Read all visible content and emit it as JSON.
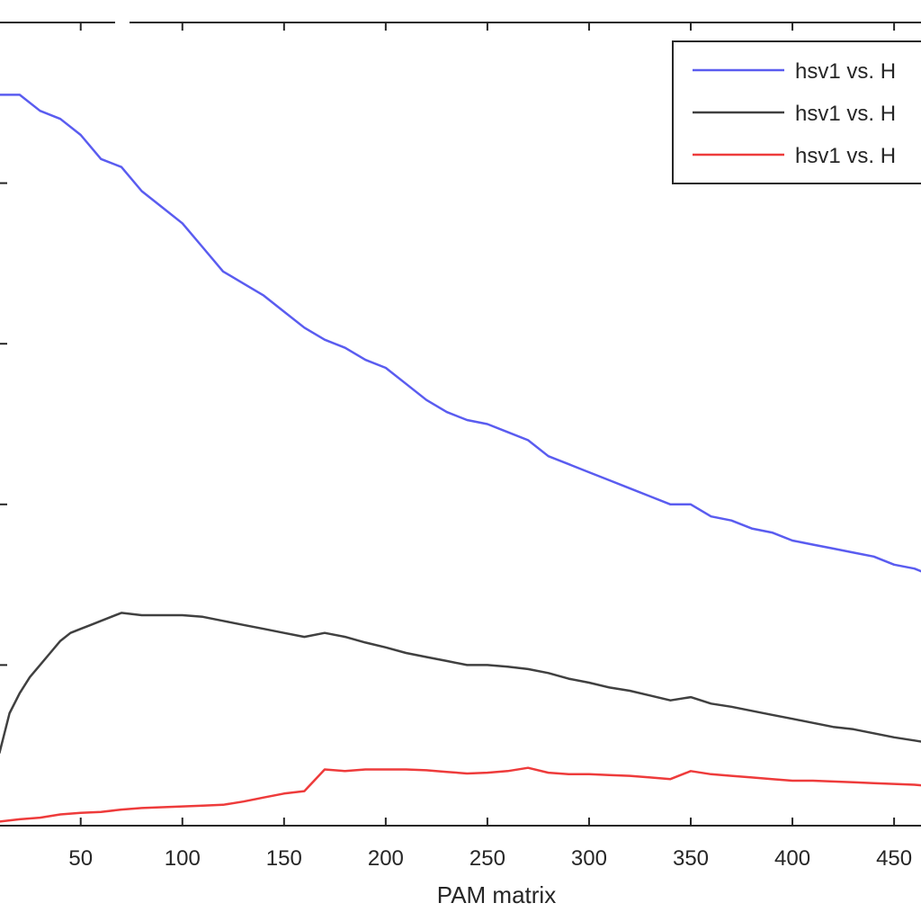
{
  "chart_data": {
    "type": "line",
    "title": "",
    "xlabel": "PAM matrix",
    "ylabel": "",
    "xlim": [
      5,
      465
    ],
    "ylim": [
      0,
      1
    ],
    "x_ticks": [
      50,
      100,
      150,
      200,
      250,
      300,
      350,
      400,
      450
    ],
    "x_tick_labels": [
      "50",
      "100",
      "150",
      "200",
      "250",
      "300",
      "350",
      "400",
      "450"
    ],
    "grid": false,
    "legend": {
      "placement": "top-right",
      "entries": [
        "hsv1 vs. H",
        "hsv1 vs. H",
        "hsv1 vs. H"
      ]
    },
    "series": [
      {
        "name": "hsv1 vs. H",
        "color": "#5a5cf0",
        "points": [
          [
            10,
            0.91
          ],
          [
            20,
            0.91
          ],
          [
            30,
            0.89
          ],
          [
            40,
            0.88
          ],
          [
            50,
            0.86
          ],
          [
            60,
            0.83
          ],
          [
            70,
            0.82
          ],
          [
            80,
            0.79
          ],
          [
            90,
            0.77
          ],
          [
            100,
            0.75
          ],
          [
            110,
            0.72
          ],
          [
            120,
            0.69
          ],
          [
            130,
            0.675
          ],
          [
            140,
            0.66
          ],
          [
            150,
            0.64
          ],
          [
            160,
            0.62
          ],
          [
            170,
            0.605
          ],
          [
            180,
            0.595
          ],
          [
            190,
            0.58
          ],
          [
            200,
            0.57
          ],
          [
            210,
            0.55
          ],
          [
            220,
            0.53
          ],
          [
            230,
            0.515
          ],
          [
            240,
            0.505
          ],
          [
            250,
            0.5
          ],
          [
            260,
            0.49
          ],
          [
            270,
            0.48
          ],
          [
            280,
            0.46
          ],
          [
            290,
            0.45
          ],
          [
            300,
            0.44
          ],
          [
            310,
            0.43
          ],
          [
            320,
            0.42
          ],
          [
            330,
            0.41
          ],
          [
            340,
            0.4
          ],
          [
            350,
            0.4
          ],
          [
            360,
            0.385
          ],
          [
            370,
            0.38
          ],
          [
            380,
            0.37
          ],
          [
            390,
            0.365
          ],
          [
            400,
            0.355
          ],
          [
            410,
            0.35
          ],
          [
            420,
            0.345
          ],
          [
            430,
            0.34
          ],
          [
            440,
            0.335
          ],
          [
            450,
            0.325
          ],
          [
            460,
            0.32
          ],
          [
            465,
            0.315
          ]
        ]
      },
      {
        "name": "hsv1 vs. H",
        "color": "#404040",
        "points": [
          [
            10,
            0.09
          ],
          [
            15,
            0.14
          ],
          [
            20,
            0.165
          ],
          [
            25,
            0.185
          ],
          [
            30,
            0.2
          ],
          [
            35,
            0.215
          ],
          [
            40,
            0.23
          ],
          [
            45,
            0.24
          ],
          [
            50,
            0.245
          ],
          [
            55,
            0.25
          ],
          [
            60,
            0.255
          ],
          [
            65,
            0.26
          ],
          [
            70,
            0.265
          ],
          [
            80,
            0.262
          ],
          [
            90,
            0.262
          ],
          [
            100,
            0.262
          ],
          [
            110,
            0.26
          ],
          [
            120,
            0.255
          ],
          [
            130,
            0.25
          ],
          [
            140,
            0.245
          ],
          [
            150,
            0.24
          ],
          [
            160,
            0.235
          ],
          [
            170,
            0.24
          ],
          [
            180,
            0.235
          ],
          [
            190,
            0.228
          ],
          [
            200,
            0.222
          ],
          [
            210,
            0.215
          ],
          [
            220,
            0.21
          ],
          [
            230,
            0.205
          ],
          [
            240,
            0.2
          ],
          [
            250,
            0.2
          ],
          [
            260,
            0.198
          ],
          [
            270,
            0.195
          ],
          [
            280,
            0.19
          ],
          [
            290,
            0.183
          ],
          [
            300,
            0.178
          ],
          [
            310,
            0.172
          ],
          [
            320,
            0.168
          ],
          [
            330,
            0.162
          ],
          [
            340,
            0.156
          ],
          [
            350,
            0.16
          ],
          [
            360,
            0.152
          ],
          [
            370,
            0.148
          ],
          [
            380,
            0.143
          ],
          [
            390,
            0.138
          ],
          [
            400,
            0.133
          ],
          [
            410,
            0.128
          ],
          [
            420,
            0.123
          ],
          [
            430,
            0.12
          ],
          [
            440,
            0.115
          ],
          [
            450,
            0.11
          ],
          [
            460,
            0.106
          ],
          [
            465,
            0.104
          ]
        ]
      },
      {
        "name": "hsv1 vs. H",
        "color": "#ee3b3b",
        "points": [
          [
            10,
            0.005
          ],
          [
            20,
            0.008
          ],
          [
            30,
            0.01
          ],
          [
            40,
            0.014
          ],
          [
            50,
            0.016
          ],
          [
            60,
            0.017
          ],
          [
            70,
            0.02
          ],
          [
            80,
            0.022
          ],
          [
            90,
            0.023
          ],
          [
            100,
            0.024
          ],
          [
            110,
            0.025
          ],
          [
            120,
            0.026
          ],
          [
            130,
            0.03
          ],
          [
            140,
            0.035
          ],
          [
            150,
            0.04
          ],
          [
            160,
            0.043
          ],
          [
            170,
            0.07
          ],
          [
            180,
            0.068
          ],
          [
            190,
            0.07
          ],
          [
            200,
            0.07
          ],
          [
            210,
            0.07
          ],
          [
            220,
            0.069
          ],
          [
            230,
            0.067
          ],
          [
            240,
            0.065
          ],
          [
            250,
            0.066
          ],
          [
            260,
            0.068
          ],
          [
            270,
            0.072
          ],
          [
            280,
            0.066
          ],
          [
            290,
            0.064
          ],
          [
            300,
            0.064
          ],
          [
            310,
            0.063
          ],
          [
            320,
            0.062
          ],
          [
            330,
            0.06
          ],
          [
            340,
            0.058
          ],
          [
            350,
            0.068
          ],
          [
            360,
            0.064
          ],
          [
            370,
            0.062
          ],
          [
            380,
            0.06
          ],
          [
            390,
            0.058
          ],
          [
            400,
            0.056
          ],
          [
            410,
            0.056
          ],
          [
            420,
            0.055
          ],
          [
            430,
            0.054
          ],
          [
            440,
            0.053
          ],
          [
            450,
            0.052
          ],
          [
            460,
            0.051
          ],
          [
            465,
            0.05
          ]
        ]
      }
    ]
  }
}
